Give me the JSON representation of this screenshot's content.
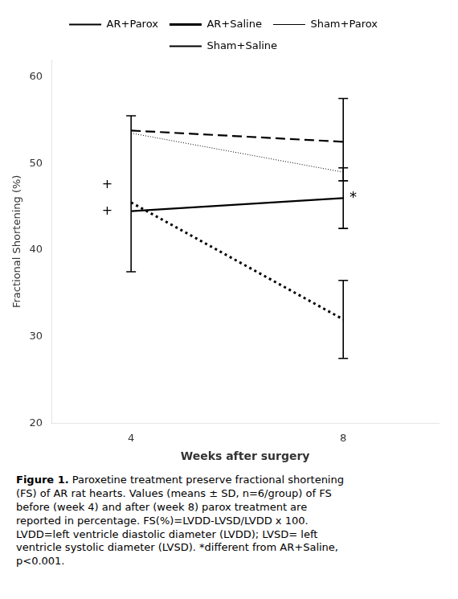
{
  "chart_data": {
    "type": "line",
    "xlabel": "Weeks after surgery",
    "ylabel": "Fractional Shortening (%)",
    "x": [
      4,
      8
    ],
    "series": [
      {
        "name": "AR+Parox",
        "color": "#000000",
        "line_style": "solid",
        "values": [
          44.5,
          46.0
        ]
      },
      {
        "name": "AR+Saline",
        "color": "#000000",
        "line_style": "dotted",
        "values": [
          45.5,
          32.0
        ]
      },
      {
        "name": "Sham+Parox",
        "color": "#000000",
        "line_style": "fine_dotted",
        "values": [
          53.5,
          49.0
        ]
      },
      {
        "name": "Sham+Saline",
        "color": "#000000",
        "line_style": "dashed",
        "values": [
          53.8,
          52.5
        ]
      }
    ],
    "xlim": [
      2.5,
      9.8
    ],
    "xticks": [
      4,
      8
    ],
    "ylim": [
      20,
      62
    ],
    "yticks": [
      20,
      30,
      40,
      50,
      60
    ],
    "grid": false,
    "legend": "top",
    "color": "#000000",
    "error_bars": [
      {
        "x": 4,
        "low": 37.5,
        "high": 55.5
      },
      {
        "x": 8,
        "low": 42.5,
        "high": 49.5
      },
      {
        "x": 8,
        "low": 27.5,
        "high": 36.5
      },
      {
        "x": 8,
        "low": 48.0,
        "high": 57.5
      }
    ],
    "annotations": [
      {
        "text": "+",
        "x": 3.55,
        "y": 47.5
      },
      {
        "text": "+",
        "x": 3.55,
        "y": 44.5
      },
      {
        "text": "*",
        "x": 8.12,
        "y": 46.0
      }
    ],
    "caption_bold": "Figure 1.",
    "caption": " Paroxetine treatment preserve fractional shortening\n(FS) of AR rat hearts. Values (means ± SD, n=6/group) of FS\nbefore (week 4) and after (week 8) parox treatment are\nreported in percentage. FS(%)=LVDD-LVSD/LVDD x 100.\nLVDD=left ventricle diastolic diameter (LVDD); LVSD= left\nventricle systolic diameter (LVSD). *different from AR+Saline,\np<0.001."
  }
}
